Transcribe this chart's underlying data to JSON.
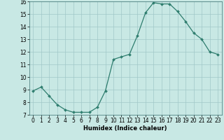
{
  "x": [
    0,
    1,
    2,
    3,
    4,
    5,
    6,
    7,
    8,
    9,
    10,
    11,
    12,
    13,
    14,
    15,
    16,
    17,
    18,
    19,
    20,
    21,
    22,
    23
  ],
  "y": [
    8.9,
    9.2,
    8.5,
    7.8,
    7.4,
    7.2,
    7.2,
    7.2,
    7.6,
    8.9,
    11.4,
    11.6,
    11.8,
    13.3,
    15.1,
    15.9,
    15.8,
    15.8,
    15.2,
    14.4,
    13.5,
    13.0,
    12.0,
    11.8
  ],
  "line_color": "#2e7d6e",
  "marker": "D",
  "marker_size": 2.0,
  "bg_color": "#c8e8e4",
  "grid_color": "#a0c8c8",
  "xlabel": "Humidex (Indice chaleur)",
  "ylim": [
    7,
    16
  ],
  "xlim": [
    -0.5,
    23.5
  ],
  "yticks": [
    7,
    8,
    9,
    10,
    11,
    12,
    13,
    14,
    15,
    16
  ],
  "xticks": [
    0,
    1,
    2,
    3,
    4,
    5,
    6,
    7,
    8,
    9,
    10,
    11,
    12,
    13,
    14,
    15,
    16,
    17,
    18,
    19,
    20,
    21,
    22,
    23
  ],
  "label_fontsize": 6.0,
  "tick_fontsize": 5.5
}
